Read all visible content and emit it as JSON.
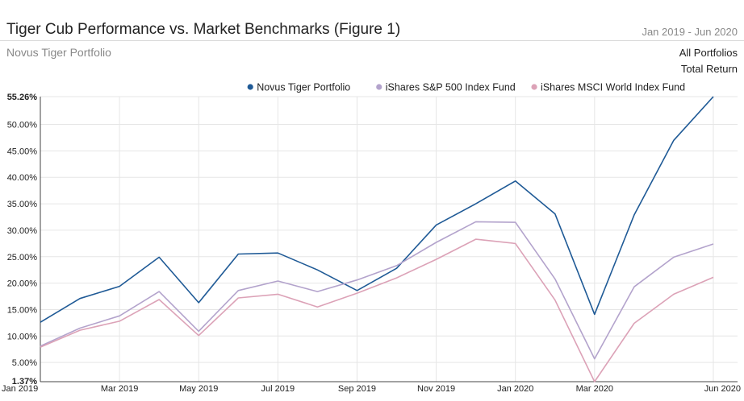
{
  "header": {
    "title": "Tiger Cub Performance vs. Market Benchmarks (Figure 1)",
    "subtitle": "Novus Tiger Portfolio",
    "date_range": "Jan 2019 - Jun 2020",
    "portfolios_label": "All Portfolios",
    "metric_label": "Total Return"
  },
  "colors": {
    "novus": "#1f5a96",
    "sp500": "#b3a3cc",
    "msci": "#dca2b7",
    "grid": "#e6e6e6"
  },
  "chart_data": {
    "type": "line",
    "title": "Tiger Cub Performance vs. Market Benchmarks (Figure 1)",
    "xlabel": "",
    "ylabel": "",
    "x": [
      "Jan 2019",
      "Feb 2019",
      "Mar 2019",
      "Apr 2019",
      "May 2019",
      "Jun 2019",
      "Jul 2019",
      "Aug 2019",
      "Sep 2019",
      "Oct 2019",
      "Nov 2019",
      "Dec 2019",
      "Jan 2020",
      "Feb 2020",
      "Mar 2020",
      "Apr 2020",
      "May 2020",
      "Jun 2020"
    ],
    "x_tick_labels": [
      "Jan 2019",
      "Mar 2019",
      "May 2019",
      "Jul 2019",
      "Sep 2019",
      "Nov 2019",
      "Jan 2020",
      "Mar 2020",
      "Jun 2020"
    ],
    "x_tick_indices": [
      0,
      2,
      4,
      6,
      8,
      10,
      12,
      14,
      17
    ],
    "ylim": [
      1.37,
      55.26
    ],
    "y_ticks": [
      5,
      10,
      15,
      20,
      25,
      30,
      35,
      40,
      45,
      50
    ],
    "y_tick_labels": [
      "5.00%",
      "10.00%",
      "15.00%",
      "20.00%",
      "25.00%",
      "30.00%",
      "35.00%",
      "40.00%",
      "45.00%",
      "50.00%"
    ],
    "y_min_label": "1.37%",
    "y_max_label": "55.26%",
    "legend_position": "top-right",
    "grid": true,
    "series": [
      {
        "name": "Novus Tiger Portfolio",
        "color": "#1f5a96",
        "values": [
          12.6,
          17.1,
          19.4,
          24.9,
          16.3,
          25.5,
          25.7,
          22.5,
          18.6,
          22.8,
          31.0,
          35.0,
          39.3,
          33.1,
          14.1,
          32.9,
          47.0,
          55.26
        ]
      },
      {
        "name": "iShares S&P 500 Index Fund",
        "color": "#b3a3cc",
        "values": [
          8.1,
          11.5,
          13.8,
          18.4,
          10.9,
          18.6,
          20.4,
          18.4,
          20.6,
          23.3,
          27.7,
          31.6,
          31.5,
          20.8,
          5.7,
          19.3,
          24.9,
          27.4
        ]
      },
      {
        "name": "iShares MSCI World Index Fund",
        "color": "#dca2b7",
        "values": [
          7.9,
          11.1,
          12.8,
          16.9,
          10.1,
          17.2,
          17.9,
          15.5,
          18.1,
          21.0,
          24.5,
          28.3,
          27.5,
          16.8,
          1.37,
          12.4,
          17.9,
          21.1
        ]
      }
    ]
  }
}
